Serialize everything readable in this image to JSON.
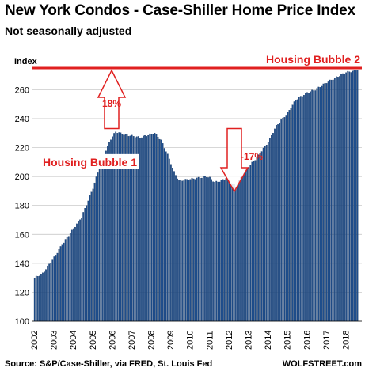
{
  "header": {
    "title": "New York Condos - Case-Shiller Home Price Index",
    "subtitle": "Not seasonally adjusted"
  },
  "footer": {
    "source": "Source: S&P/Case-Shiller, via FRED,  St. Louis Fed",
    "brand": "WOLFSTREET.com"
  },
  "colors": {
    "bar": "#1f4e8c",
    "bar_edge": "#12325e",
    "accent": "#e02020",
    "grid": "#bfbfbf"
  },
  "chart_data": {
    "type": "bar",
    "title": "New York Condos - Case-Shiller Home Price Index",
    "subtitle": "Not seasonally adjusted",
    "ylabel": "Index",
    "xlabel": "",
    "ylim": [
      100,
      275
    ],
    "yticks": [
      100,
      120,
      140,
      160,
      180,
      200,
      220,
      240,
      260
    ],
    "x_tick_labels": [
      "2002",
      "2003",
      "2004",
      "2005",
      "2006",
      "2007",
      "2008",
      "2009",
      "2010",
      "2011",
      "2012",
      "2013",
      "2014",
      "2015",
      "2016",
      "2017",
      "2018"
    ],
    "grid": true,
    "series_frequency": "monthly",
    "start": "2002-01",
    "anchors": [
      [
        "2002-01",
        130
      ],
      [
        "2002-06",
        133
      ],
      [
        "2003-01",
        144
      ],
      [
        "2003-06",
        153
      ],
      [
        "2004-01",
        164
      ],
      [
        "2004-06",
        172
      ],
      [
        "2005-01",
        192
      ],
      [
        "2005-06",
        210
      ],
      [
        "2005-12",
        226
      ],
      [
        "2006-03",
        231
      ],
      [
        "2006-08",
        229
      ],
      [
        "2007-01",
        228
      ],
      [
        "2007-06",
        227
      ],
      [
        "2007-12",
        229
      ],
      [
        "2008-03",
        230
      ],
      [
        "2008-07",
        225
      ],
      [
        "2008-11",
        215
      ],
      [
        "2009-03",
        203
      ],
      [
        "2009-06",
        197
      ],
      [
        "2009-12",
        198
      ],
      [
        "2010-06",
        199
      ],
      [
        "2010-11",
        200
      ],
      [
        "2011-01",
        199
      ],
      [
        "2011-04",
        196
      ],
      [
        "2011-08",
        197
      ],
      [
        "2011-11",
        199
      ],
      [
        "2012-01",
        197
      ],
      [
        "2012-05",
        193
      ],
      [
        "2012-09",
        201
      ],
      [
        "2013-01",
        207
      ],
      [
        "2013-06",
        213
      ],
      [
        "2014-01",
        224
      ],
      [
        "2014-06",
        235
      ],
      [
        "2015-01",
        244
      ],
      [
        "2015-06",
        253
      ],
      [
        "2016-01",
        258
      ],
      [
        "2016-06",
        260
      ],
      [
        "2017-01",
        265
      ],
      [
        "2017-06",
        268
      ],
      [
        "2018-01",
        272
      ],
      [
        "2018-06",
        273
      ],
      [
        "2018-08",
        274
      ]
    ],
    "reference_line": {
      "value": 275,
      "label": "Housing Bubble 2"
    },
    "annotations": [
      {
        "text": "Housing Bubble 1"
      },
      {
        "text": "18%"
      },
      {
        "text": "-17%"
      }
    ]
  }
}
